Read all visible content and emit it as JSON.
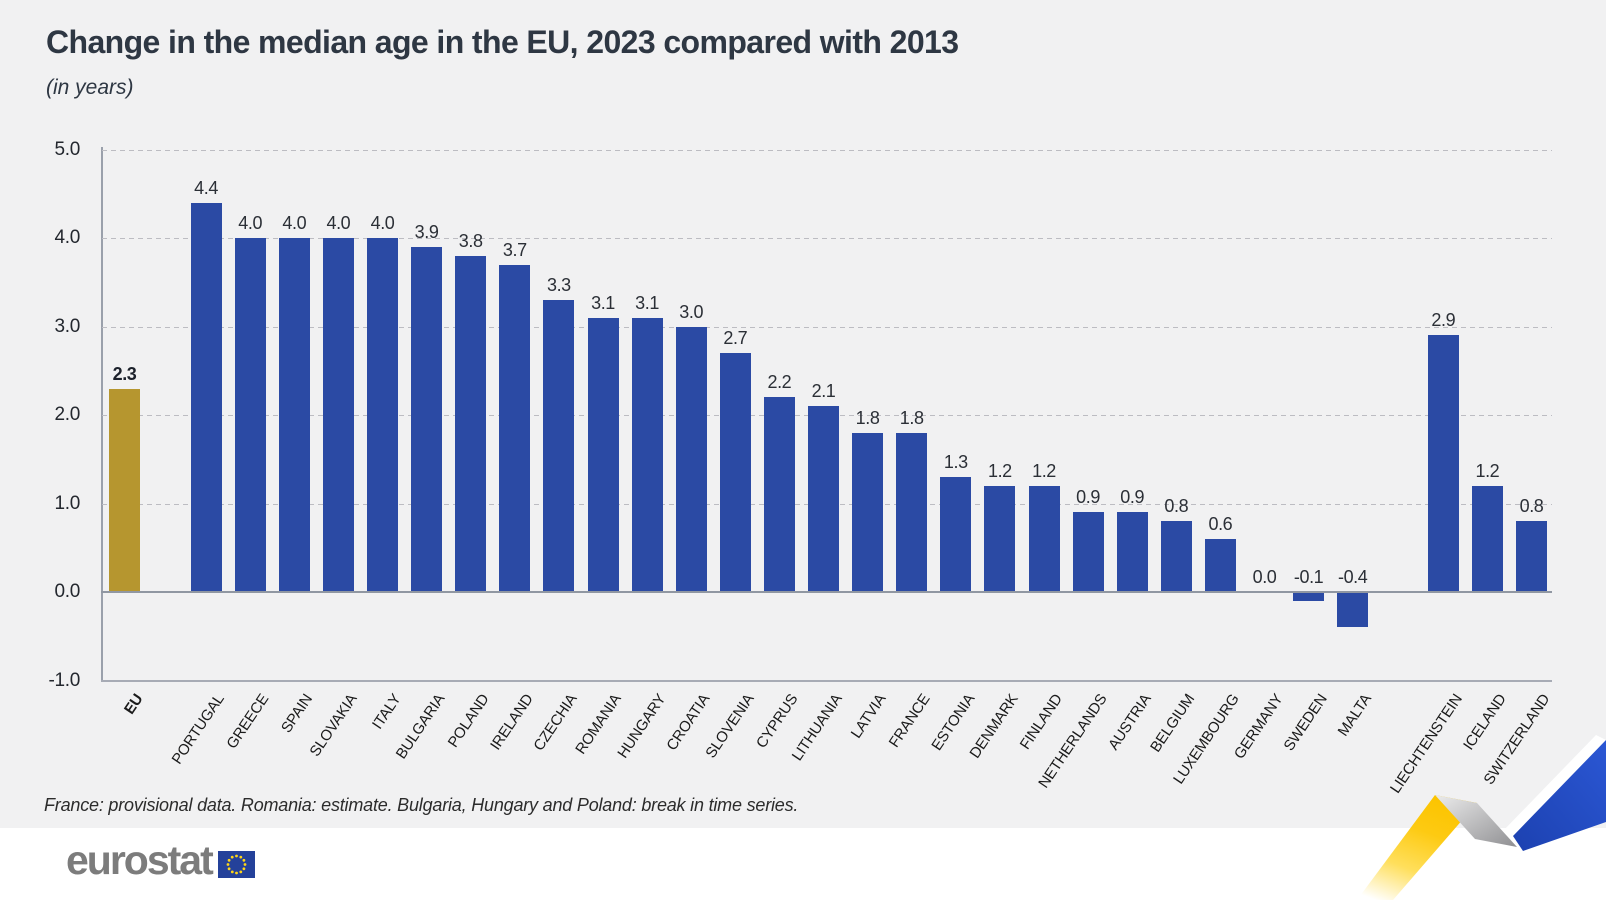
{
  "header": {
    "title": "Change in the median age in the EU, 2023 compared with 2013",
    "subtitle": "(in years)"
  },
  "chart_data": {
    "type": "bar",
    "title": "Change in the median age in the EU, 2023 compared with 2013",
    "subtitle": "(in years)",
    "unit": "years",
    "ylim": [
      -1.0,
      5.0
    ],
    "yticks": [
      5.0,
      4.0,
      3.0,
      2.0,
      1.0,
      0.0,
      -1.0
    ],
    "grid": "horizontal-dashed",
    "zero_line": true,
    "legend": "none",
    "bar_colors": {
      "eu_aggregate": "#b6962f",
      "country": "#2b4aa4"
    },
    "bars": [
      {
        "label": "EU",
        "value": 2.3,
        "highlight": true
      },
      {
        "label": "PORTUGAL",
        "value": 4.4
      },
      {
        "label": "GREECE",
        "value": 4.0
      },
      {
        "label": "SPAIN",
        "value": 4.0
      },
      {
        "label": "SLOVAKIA",
        "value": 4.0
      },
      {
        "label": "ITALY",
        "value": 4.0
      },
      {
        "label": "BULGARIA",
        "value": 3.9
      },
      {
        "label": "POLAND",
        "value": 3.8
      },
      {
        "label": "IRELAND",
        "value": 3.7
      },
      {
        "label": "CZECHIA",
        "value": 3.3
      },
      {
        "label": "ROMANIA",
        "value": 3.1
      },
      {
        "label": "HUNGARY",
        "value": 3.1
      },
      {
        "label": "CROATIA",
        "value": 3.0
      },
      {
        "label": "SLOVENIA",
        "value": 2.7
      },
      {
        "label": "CYPRUS",
        "value": 2.2
      },
      {
        "label": "LITHUANIA",
        "value": 2.1
      },
      {
        "label": "LATVIA",
        "value": 1.8
      },
      {
        "label": "FRANCE",
        "value": 1.8
      },
      {
        "label": "ESTONIA",
        "value": 1.3
      },
      {
        "label": "DENMARK",
        "value": 1.2
      },
      {
        "label": "FINLAND",
        "value": 1.2
      },
      {
        "label": "NETHERLANDS",
        "value": 0.9
      },
      {
        "label": "AUSTRIA",
        "value": 0.9
      },
      {
        "label": "BELGIUM",
        "value": 0.8
      },
      {
        "label": "LUXEMBOURG",
        "value": 0.6
      },
      {
        "label": "GERMANY",
        "value": 0.0
      },
      {
        "label": "SWEDEN",
        "value": -0.1
      },
      {
        "label": "MALTA",
        "value": -0.4
      },
      {
        "label": "LIECHTENSTEIN",
        "value": 2.9
      },
      {
        "label": "ICELAND",
        "value": 1.2
      },
      {
        "label": "SWITZERLAND",
        "value": 0.8
      }
    ],
    "gap_after": [
      "EU",
      "MALTA"
    ]
  },
  "footnote": "France: provisional data. Romania: estimate. Bulgaria, Hungary and Poland: break in time series.",
  "logo": {
    "text": "eurostat"
  }
}
